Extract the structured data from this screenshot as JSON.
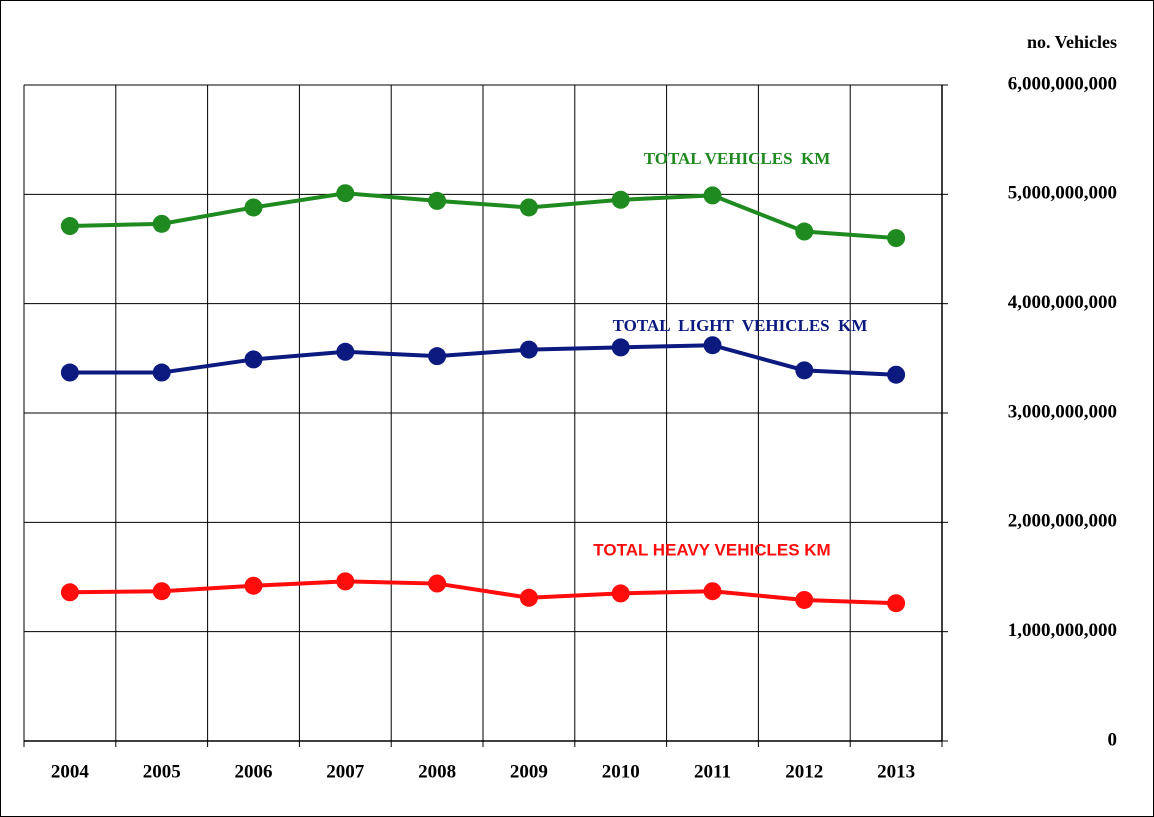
{
  "chart_data": {
    "type": "line",
    "y_axis_label": "no. Vehicles",
    "categories": [
      "2004",
      "2005",
      "2006",
      "2007",
      "2008",
      "2009",
      "2010",
      "2011",
      "2012",
      "2013"
    ],
    "series": [
      {
        "name": "TOTAL VEHICLES  KM",
        "color": "#1f8a1f",
        "values": [
          4710000000,
          4730000000,
          4880000000,
          5010000000,
          4940000000,
          4880000000,
          4950000000,
          4990000000,
          4660000000,
          4600000000
        ]
      },
      {
        "name": "TOTAL  LIGHT  VEHICLES  KM",
        "color": "#0c1a80",
        "values": [
          3370000000,
          3370000000,
          3490000000,
          3560000000,
          3520000000,
          3580000000,
          3600000000,
          3620000000,
          3390000000,
          3350000000
        ]
      },
      {
        "name": "TOTAL HEAVY VEHICLES KM",
        "color": "#ff0d0d",
        "values": [
          1360000000,
          1370000000,
          1420000000,
          1460000000,
          1440000000,
          1310000000,
          1350000000,
          1370000000,
          1290000000,
          1260000000
        ]
      }
    ],
    "ylim": [
      0,
      6000000000
    ],
    "yticks": [
      0,
      {
        "value": 1000000000,
        "label": "1,000,000,000"
      },
      {
        "value": 2000000000,
        "label": "2,000,000,000"
      },
      {
        "value": 3000000000,
        "label": "3,000,000,000"
      },
      {
        "value": 4000000000,
        "label": "4,000,000,000"
      },
      {
        "value": 5000000000,
        "label": "5,000,000,000"
      },
      {
        "value": 6000000000,
        "label": "6,000,000,000"
      }
    ],
    "grid": true
  }
}
